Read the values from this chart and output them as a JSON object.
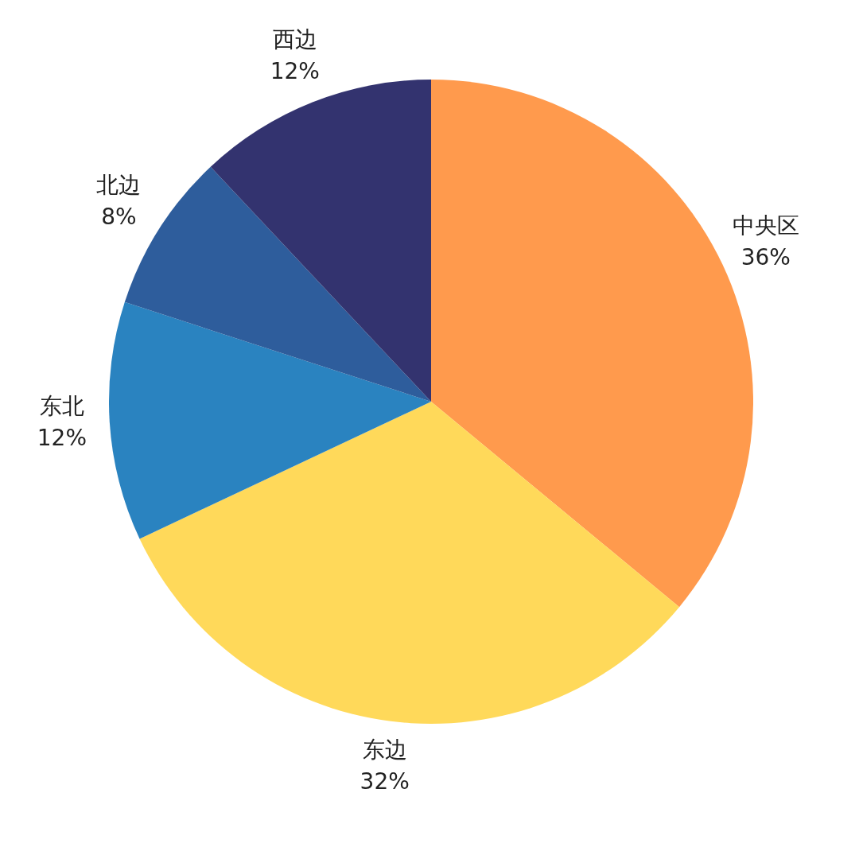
{
  "chart_data": {
    "type": "pie",
    "categories": [
      "中央区",
      "东边",
      "东北",
      "北边",
      "西边"
    ],
    "values": [
      36,
      32,
      12,
      8,
      12
    ],
    "value_labels": [
      "36%",
      "32%",
      "12%",
      "8%",
      "12%"
    ],
    "colors": [
      "#ff9a4d",
      "#ffd95a",
      "#2a83c0",
      "#2e5d9c",
      "#33336f"
    ],
    "legend": false
  }
}
